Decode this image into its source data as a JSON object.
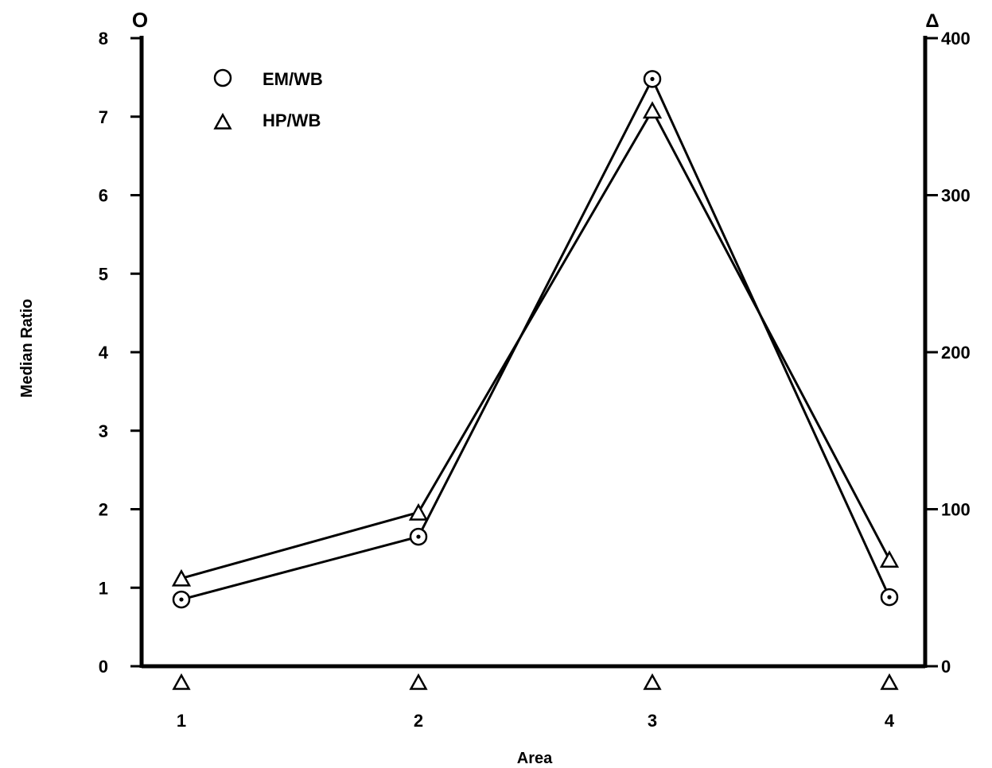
{
  "chart_data": {
    "type": "line",
    "title": "",
    "xlabel": "Area",
    "ylabel": "Median Ratio",
    "categories": [
      "1",
      "2",
      "3",
      "4"
    ],
    "left_axis": {
      "ylim": [
        0,
        8
      ],
      "ticks": [
        0,
        1,
        2,
        3,
        4,
        5,
        6,
        7,
        8
      ],
      "marker_symbol": "O"
    },
    "right_axis": {
      "ylim": [
        0,
        400
      ],
      "ticks": [
        0,
        100,
        200,
        300,
        400
      ],
      "marker_symbol": "Δ"
    },
    "series": [
      {
        "name": "EM/WB",
        "axis": "left",
        "marker": "circle-dot",
        "values": [
          0.85,
          1.65,
          7.48,
          0.88
        ]
      },
      {
        "name": "HP/WB",
        "axis": "right",
        "marker": "triangle",
        "values": [
          56,
          98,
          354,
          68
        ]
      }
    ],
    "baseline_markers": {
      "marker": "triangle",
      "x": [
        "1",
        "2",
        "3",
        "4"
      ]
    },
    "legend": {
      "placement": "top-left",
      "entries": [
        {
          "symbol": "O",
          "label": "EM/WB"
        },
        {
          "symbol": "Δ",
          "label": "HP/WB"
        }
      ]
    },
    "grid": false
  }
}
